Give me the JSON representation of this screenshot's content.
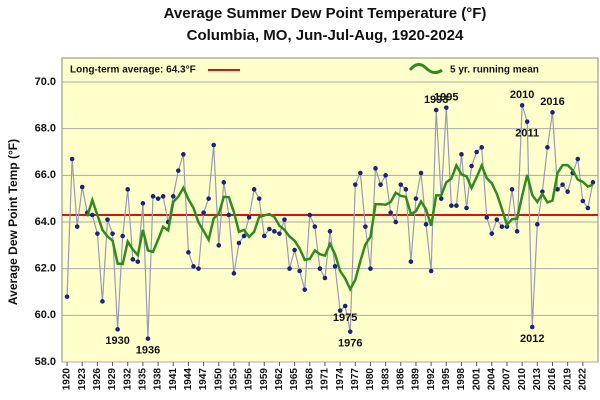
{
  "chart_data": {
    "type": "line",
    "title": "Average Summer Dew Point Temperature (°F)",
    "subtitle": "Columbia, MO,  Jun-Jul-Aug, 1920-2024",
    "y_label": "Average Dew Point Temp (°F)",
    "x": [
      1920,
      1921,
      1922,
      1923,
      1924,
      1925,
      1926,
      1927,
      1928,
      1929,
      1930,
      1931,
      1932,
      1933,
      1934,
      1935,
      1936,
      1937,
      1938,
      1939,
      1940,
      1941,
      1942,
      1943,
      1944,
      1945,
      1946,
      1947,
      1948,
      1949,
      1950,
      1951,
      1952,
      1953,
      1954,
      1955,
      1956,
      1957,
      1958,
      1959,
      1960,
      1961,
      1962,
      1963,
      1964,
      1965,
      1966,
      1967,
      1968,
      1969,
      1970,
      1971,
      1972,
      1973,
      1974,
      1975,
      1976,
      1977,
      1978,
      1979,
      1980,
      1981,
      1982,
      1983,
      1984,
      1985,
      1986,
      1987,
      1988,
      1989,
      1990,
      1991,
      1992,
      1993,
      1994,
      1995,
      1996,
      1997,
      1998,
      1999,
      2000,
      2001,
      2002,
      2003,
      2004,
      2005,
      2006,
      2007,
      2008,
      2009,
      2010,
      2011,
      2012,
      2013,
      2014,
      2015,
      2016,
      2017,
      2018,
      2019,
      2020,
      2021,
      2022,
      2023,
      2024
    ],
    "series": [
      {
        "color": "#1a237e",
        "line_color": "#9a9ab8",
        "values": [
          60.8,
          66.7,
          63.8,
          65.5,
          64.4,
          64.3,
          63.5,
          60.6,
          64.1,
          63.5,
          59.4,
          63.4,
          65.4,
          62.4,
          62.3,
          64.8,
          59.0,
          65.1,
          65.0,
          65.1,
          64.0,
          65.1,
          66.2,
          66.9,
          62.7,
          62.1,
          62.0,
          64.4,
          65.0,
          67.3,
          63.0,
          65.7,
          64.3,
          61.8,
          63.1,
          63.4,
          64.2,
          65.4,
          65.0,
          63.4,
          63.7,
          63.6,
          63.5,
          64.1,
          62.0,
          62.8,
          61.9,
          61.1,
          64.3,
          63.8,
          62.0,
          61.6,
          63.6,
          62.1,
          60.2,
          60.4,
          59.3,
          65.6,
          66.1,
          63.8,
          62.0,
          66.3,
          65.6,
          66.0,
          64.4,
          64.0,
          65.6,
          65.4,
          62.3,
          65.0,
          66.1,
          63.9,
          61.9,
          68.8,
          65.0,
          68.9,
          64.7,
          64.7,
          66.9,
          64.6,
          66.4,
          67.0,
          67.2,
          64.2,
          63.5,
          64.1,
          63.8,
          63.8,
          65.4,
          63.6,
          69.0,
          68.3,
          59.5,
          63.9,
          65.3,
          67.2,
          68.7,
          65.4,
          65.6,
          65.3,
          66.1,
          66.7,
          64.9,
          64.6,
          65.7
        ]
      },
      {
        "name": "5 yr. running mean",
        "color": "#2e8b1e",
        "values": [
          null,
          null,
          null,
          null,
          64.24,
          64.94,
          64.3,
          63.66,
          63.38,
          63.2,
          62.22,
          62.2,
          63.16,
          62.82,
          62.58,
          63.66,
          62.78,
          62.72,
          63.24,
          63.8,
          63.64,
          64.86,
          65.08,
          65.46,
          64.98,
          64.6,
          63.98,
          63.62,
          63.24,
          64.16,
          64.34,
          65.08,
          65.06,
          64.42,
          63.58,
          63.66,
          63.36,
          63.58,
          64.22,
          64.28,
          64.34,
          64.22,
          63.84,
          63.66,
          63.38,
          63.2,
          62.86,
          62.38,
          62.42,
          62.78,
          62.62,
          62.56,
          63.06,
          62.62,
          61.9,
          61.58,
          61.12,
          61.52,
          62.32,
          63.04,
          63.36,
          64.76,
          64.76,
          64.74,
          64.86,
          65.26,
          65.12,
          65.08,
          64.34,
          64.46,
          64.88,
          64.54,
          63.84,
          65.14,
          65.14,
          65.7,
          65.86,
          66.42,
          66.04,
          65.96,
          65.46,
          65.92,
          66.42,
          65.88,
          65.66,
          65.2,
          64.56,
          63.88,
          64.12,
          64.14,
          65.12,
          66.02,
          65.16,
          64.86,
          65.2,
          64.84,
          64.92,
          66.1,
          66.44,
          66.44,
          66.22,
          65.82,
          65.72,
          65.52,
          65.6
        ]
      }
    ],
    "reference_line": {
      "value": 64.3,
      "label": "Long-term average: 64.3°F",
      "color": "#e01010"
    },
    "annotations": [
      {
        "text": "1930",
        "x": 1930
      },
      {
        "text": "1936",
        "x": 1936
      },
      {
        "text": "1975",
        "x": 1975
      },
      {
        "text": "1976",
        "x": 1976
      },
      {
        "text": "1993",
        "x": 1993
      },
      {
        "text": "1995",
        "x": 1995
      },
      {
        "text": "2010",
        "x": 2010
      },
      {
        "text": "2011",
        "x": 2011
      },
      {
        "text": "2012",
        "x": 2012
      },
      {
        "text": "2016",
        "x": 2016
      }
    ],
    "xlim": [
      1919,
      2025
    ],
    "xticks": [
      1920,
      1923,
      1926,
      1929,
      1932,
      1935,
      1938,
      1941,
      1944,
      1947,
      1950,
      1953,
      1956,
      1959,
      1962,
      1965,
      1968,
      1971,
      1974,
      1977,
      1980,
      1983,
      1986,
      1989,
      1992,
      1995,
      1998,
      2001,
      2004,
      2007,
      2010,
      2013,
      2016,
      2019,
      2022
    ],
    "ylim": [
      58,
      70
    ],
    "yticks": [
      {
        "value": 58,
        "label": "58.0"
      },
      {
        "value": 60,
        "label": "60.0"
      },
      {
        "value": 62,
        "label": "62.0"
      },
      {
        "value": 64,
        "label": "64.0"
      },
      {
        "value": 66,
        "label": "66.0"
      },
      {
        "value": 68,
        "label": "68.0"
      },
      {
        "value": 70,
        "label": "70.0"
      }
    ],
    "grid": true,
    "background": "#ffffcc"
  }
}
